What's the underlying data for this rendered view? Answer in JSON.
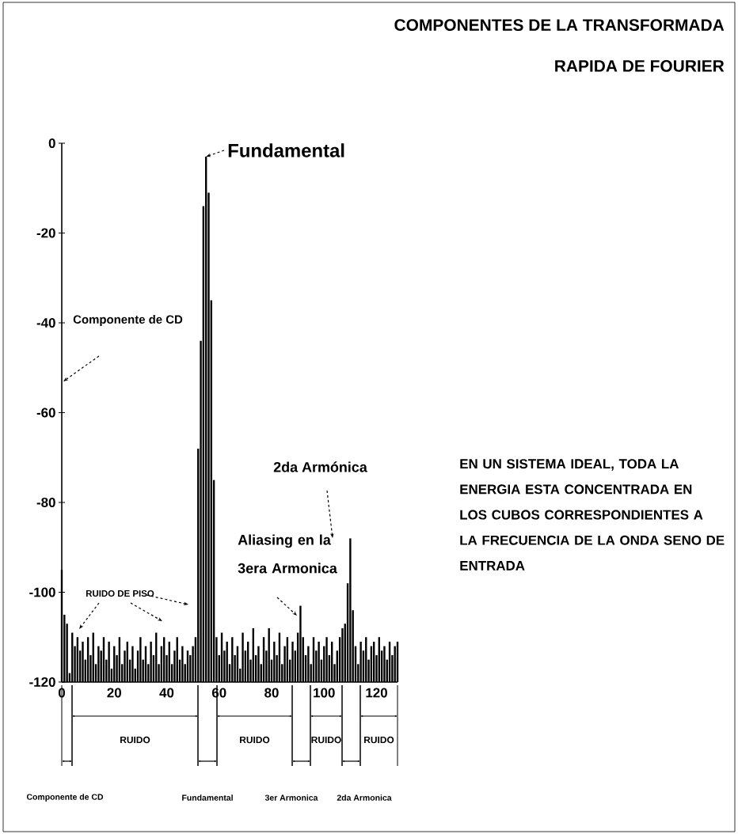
{
  "chart_data": {
    "type": "bar",
    "title": "COMPONENTES DE LA TRANSFORMADA RAPIDA DE FOURIER",
    "x": [
      0,
      1,
      2,
      3,
      4,
      5,
      6,
      7,
      8,
      9,
      10,
      11,
      12,
      13,
      14,
      15,
      16,
      17,
      18,
      19,
      20,
      21,
      22,
      23,
      24,
      25,
      26,
      27,
      28,
      29,
      30,
      31,
      32,
      33,
      34,
      35,
      36,
      37,
      38,
      39,
      40,
      41,
      42,
      43,
      44,
      45,
      46,
      47,
      48,
      49,
      50,
      51,
      52,
      53,
      54,
      55,
      56,
      57,
      58,
      59,
      60,
      61,
      62,
      63,
      64,
      65,
      66,
      67,
      68,
      69,
      70,
      71,
      72,
      73,
      74,
      75,
      76,
      77,
      78,
      79,
      80,
      81,
      82,
      83,
      84,
      85,
      86,
      87,
      88,
      89,
      90,
      91,
      92,
      93,
      94,
      95,
      96,
      97,
      98,
      99,
      100,
      101,
      102,
      103,
      104,
      105,
      106,
      107,
      108,
      109,
      110,
      111,
      112,
      113,
      114,
      115,
      116,
      117,
      118,
      119,
      120,
      121,
      122,
      123,
      124,
      125,
      126,
      127,
      128
    ],
    "base": [
      -120,
      -120,
      -120,
      -120,
      -120,
      -120,
      -120,
      -120,
      -120,
      -120,
      -120,
      -120,
      -120,
      -120,
      -120,
      -120,
      -120,
      -120,
      -120,
      -120,
      -120,
      -120,
      -120,
      -120,
      -120,
      -120,
      -120,
      -120,
      -120,
      -120,
      -120,
      -120,
      -120,
      -120,
      -120,
      -120,
      -120,
      -120,
      -120,
      -120,
      -120,
      -120,
      -120,
      -120,
      -120,
      -120,
      -120,
      -120,
      -120,
      -120,
      -120,
      -120,
      -120,
      -120,
      -120,
      -120,
      -120,
      -120,
      -120,
      -120,
      -120,
      -120,
      -120,
      -120,
      -120,
      -120,
      -120,
      -120,
      -120,
      -120,
      -120,
      -120,
      -120,
      -120,
      -120,
      -120,
      -120,
      -120,
      -120,
      -120,
      -120,
      -120,
      -120,
      -120,
      -120,
      -120,
      -120,
      -120,
      -120,
      -120,
      -120,
      -120,
      -120,
      -120,
      -120,
      -120,
      -120,
      -120,
      -120,
      -120,
      -120,
      -120,
      -120,
      -120,
      -120,
      -120,
      -120,
      -120,
      -120,
      -120,
      -120,
      -120,
      -120,
      -120,
      -120,
      -120,
      -120,
      -120,
      -120,
      -120,
      -120,
      -120,
      -120,
      -120,
      -120,
      -120,
      -120,
      -120,
      -120
    ],
    "values": [
      25,
      15,
      13,
      2,
      11,
      8,
      10,
      7,
      9,
      5,
      10,
      6,
      11,
      4,
      8,
      7,
      10,
      5,
      9,
      3,
      8,
      6,
      10,
      4,
      7,
      9,
      5,
      8,
      3,
      7,
      10,
      5,
      8,
      4,
      9,
      6,
      11,
      4,
      8,
      10,
      6,
      9,
      4,
      7,
      10,
      5,
      8,
      4,
      7,
      6,
      8,
      10,
      52,
      76,
      106,
      117,
      109,
      85,
      45,
      10,
      6,
      11,
      7,
      9,
      4,
      10,
      6,
      8,
      3,
      11,
      7,
      9,
      5,
      12,
      6,
      8,
      4,
      10,
      7,
      12,
      5,
      9,
      6,
      11,
      4,
      8,
      10,
      5,
      9,
      7,
      11,
      17,
      10,
      6,
      8,
      4,
      10,
      7,
      9,
      5,
      8,
      10,
      6,
      9,
      4,
      7,
      10,
      12,
      13,
      22,
      32,
      16,
      8,
      4,
      9,
      7,
      10,
      5,
      8,
      9,
      6,
      10,
      7,
      8,
      5,
      9,
      6,
      8,
      9
    ],
    "color": "#000000",
    "xlim": [
      0,
      128
    ],
    "ylim": [
      -120,
      0
    ],
    "xticks": [
      0,
      20,
      40,
      60,
      80,
      100,
      120
    ],
    "yticks": [
      -120,
      -100,
      -80,
      -60,
      -40,
      -20,
      0
    ],
    "annotations": [
      "Componente de CD",
      {
        "text": "Fundamental",
        "x": 55,
        "y": -3
      },
      "RUIDO DE PISO",
      "Aliasing en la 3era Armonica",
      "2da Armónica",
      "EN UN SISTEMA IDEAL, TODA LA ENERGIA ESTA CONCENTRADA EN LOS CUBOS CORRESPONDIENTES A LA FRECUENCIA DE LA ONDA SENO DE ENTRADA",
      "Componente de CD",
      "RUIDO",
      "Fundamental",
      "RUIDO",
      "3er Armonica",
      "RUIDO",
      "2da Armonica",
      "RUIDO"
    ]
  }
}
